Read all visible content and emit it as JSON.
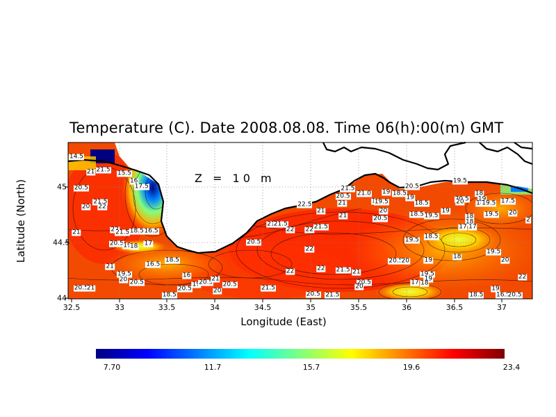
{
  "title": "Temperature (C). Date 2008.08.08. Time 06(h):00(m) GMT",
  "depth_label": "Z = 10 m",
  "axes": {
    "xlabel": "Longitude (East)",
    "ylabel": "Latitude (North)",
    "xticks": [
      "32.5",
      "33",
      "33.5",
      "34",
      "34.5",
      "35",
      "35.5",
      "36",
      "36.5",
      "37"
    ],
    "yticks": [
      "45",
      "44.5",
      "44"
    ]
  },
  "colorbar": {
    "ticks": [
      "7.70",
      "11.7",
      "15.7",
      "19.6",
      "23.4"
    ],
    "colors": [
      "#00007f",
      "#0000ff",
      "#007fff",
      "#00ffff",
      "#7fff7f",
      "#ffff00",
      "#ff7f00",
      "#ff0000",
      "#7f0000"
    ]
  },
  "contour_labels": [
    {
      "t": "14.5",
      "lon": 32.55,
      "lat": 45.27
    },
    {
      "t": "21",
      "lon": 32.7,
      "lat": 45.13
    },
    {
      "t": "21.5",
      "lon": 32.83,
      "lat": 45.15
    },
    {
      "t": "15.5",
      "lon": 33.05,
      "lat": 45.12
    },
    {
      "t": "16",
      "lon": 33.15,
      "lat": 45.05
    },
    {
      "t": "17.5",
      "lon": 33.23,
      "lat": 45.0
    },
    {
      "t": "20.5",
      "lon": 32.6,
      "lat": 44.99
    },
    {
      "t": "20",
      "lon": 32.65,
      "lat": 44.82
    },
    {
      "t": "21.5",
      "lon": 32.8,
      "lat": 44.86
    },
    {
      "t": "22",
      "lon": 32.82,
      "lat": 44.82
    },
    {
      "t": "21",
      "lon": 32.55,
      "lat": 44.59
    },
    {
      "t": "22",
      "lon": 32.95,
      "lat": 44.61
    },
    {
      "t": "21.5",
      "lon": 33.03,
      "lat": 44.59
    },
    {
      "t": "18.5",
      "lon": 33.18,
      "lat": 44.6
    },
    {
      "t": "16.5",
      "lon": 33.33,
      "lat": 44.6
    },
    {
      "t": "20.5",
      "lon": 32.97,
      "lat": 44.49
    },
    {
      "t": "19",
      "lon": 33.08,
      "lat": 44.47
    },
    {
      "t": "18",
      "lon": 33.15,
      "lat": 44.46
    },
    {
      "t": "17",
      "lon": 33.3,
      "lat": 44.49
    },
    {
      "t": "21",
      "lon": 32.9,
      "lat": 44.28
    },
    {
      "t": "16.5",
      "lon": 33.35,
      "lat": 44.3
    },
    {
      "t": "18.5",
      "lon": 33.55,
      "lat": 44.34
    },
    {
      "t": "19.5",
      "lon": 33.05,
      "lat": 44.21
    },
    {
      "t": "20",
      "lon": 33.04,
      "lat": 44.16
    },
    {
      "t": "20.5",
      "lon": 33.18,
      "lat": 44.14
    },
    {
      "t": "20.5",
      "lon": 32.6,
      "lat": 44.09
    },
    {
      "t": "21",
      "lon": 32.7,
      "lat": 44.09
    },
    {
      "t": "16",
      "lon": 33.7,
      "lat": 44.2
    },
    {
      "t": "19",
      "lon": 33.8,
      "lat": 44.12
    },
    {
      "t": "20.5",
      "lon": 33.9,
      "lat": 44.14
    },
    {
      "t": "21",
      "lon": 34.0,
      "lat": 44.17
    },
    {
      "t": "20.5",
      "lon": 34.15,
      "lat": 44.12
    },
    {
      "t": "20",
      "lon": 34.02,
      "lat": 44.06
    },
    {
      "t": "21.5",
      "lon": 34.55,
      "lat": 44.09
    },
    {
      "t": "20.5",
      "lon": 35.02,
      "lat": 44.03
    },
    {
      "t": "21.5",
      "lon": 35.22,
      "lat": 44.01
    },
    {
      "t": "18.5",
      "lon": 33.52,
      "lat": 44.02
    },
    {
      "t": "21",
      "lon": 34.58,
      "lat": 44.66
    },
    {
      "t": "21.5",
      "lon": 34.68,
      "lat": 44.66
    },
    {
      "t": "22",
      "lon": 34.78,
      "lat": 44.61
    },
    {
      "t": "20.5",
      "lon": 34.4,
      "lat": 44.5
    },
    {
      "t": "22",
      "lon": 34.78,
      "lat": 44.24
    },
    {
      "t": "22",
      "lon": 34.98,
      "lat": 44.61
    },
    {
      "t": "21.5",
      "lon": 35.1,
      "lat": 44.64
    },
    {
      "t": "22",
      "lon": 34.98,
      "lat": 44.44
    },
    {
      "t": "22",
      "lon": 35.1,
      "lat": 44.26
    },
    {
      "t": "21.5",
      "lon": 35.33,
      "lat": 44.25
    },
    {
      "t": "21",
      "lon": 35.47,
      "lat": 44.23
    },
    {
      "t": "20.5",
      "lon": 35.55,
      "lat": 44.14
    },
    {
      "t": "20",
      "lon": 35.5,
      "lat": 44.1
    },
    {
      "t": "22.5",
      "lon": 34.93,
      "lat": 44.84
    },
    {
      "t": "21",
      "lon": 35.1,
      "lat": 44.78
    },
    {
      "t": "21",
      "lon": 35.33,
      "lat": 44.74
    },
    {
      "t": "21",
      "lon": 35.32,
      "lat": 44.85
    },
    {
      "t": "20.5",
      "lon": 35.33,
      "lat": 44.91
    },
    {
      "t": "21.5",
      "lon": 35.38,
      "lat": 44.98
    },
    {
      "t": "21.0",
      "lon": 35.55,
      "lat": 44.94
    },
    {
      "t": "1",
      "lon": 35.65,
      "lat": 44.87
    },
    {
      "t": "19.5",
      "lon": 35.73,
      "lat": 44.86
    },
    {
      "t": "19",
      "lon": 35.78,
      "lat": 44.95
    },
    {
      "t": "18.5",
      "lon": 35.92,
      "lat": 44.94
    },
    {
      "t": "20.5",
      "lon": 36.05,
      "lat": 45.0
    },
    {
      "t": "19",
      "lon": 36.03,
      "lat": 44.9
    },
    {
      "t": "18.5",
      "lon": 36.15,
      "lat": 44.85
    },
    {
      "t": "20",
      "lon": 35.75,
      "lat": 44.78
    },
    {
      "t": "20.5",
      "lon": 35.72,
      "lat": 44.71
    },
    {
      "t": "18.5",
      "lon": 36.1,
      "lat": 44.75
    },
    {
      "t": "19.5",
      "lon": 36.25,
      "lat": 44.74
    },
    {
      "t": "19",
      "lon": 36.4,
      "lat": 44.78
    },
    {
      "t": "19.5",
      "lon": 36.55,
      "lat": 45.05
    },
    {
      "t": "20.5",
      "lon": 36.57,
      "lat": 44.89
    },
    {
      "t": "20",
      "lon": 36.55,
      "lat": 44.86
    },
    {
      "t": "18",
      "lon": 36.75,
      "lat": 44.94
    },
    {
      "t": "19",
      "lon": 36.78,
      "lat": 44.89
    },
    {
      "t": "18",
      "lon": 36.76,
      "lat": 44.85
    },
    {
      "t": "19.5",
      "lon": 36.85,
      "lat": 44.85
    },
    {
      "t": "17.5",
      "lon": 37.05,
      "lat": 44.87
    },
    {
      "t": "18",
      "lon": 36.65,
      "lat": 44.73
    },
    {
      "t": "18",
      "lon": 36.65,
      "lat": 44.68
    },
    {
      "t": "19.5",
      "lon": 36.88,
      "lat": 44.75
    },
    {
      "t": "20",
      "lon": 37.1,
      "lat": 44.76
    },
    {
      "t": "2",
      "lon": 37.28,
      "lat": 44.7
    },
    {
      "t": "17",
      "lon": 36.58,
      "lat": 44.64
    },
    {
      "t": "17",
      "lon": 36.68,
      "lat": 44.64
    },
    {
      "t": "18.5",
      "lon": 36.25,
      "lat": 44.55
    },
    {
      "t": "19.5",
      "lon": 36.05,
      "lat": 44.52
    },
    {
      "t": "18",
      "lon": 36.52,
      "lat": 44.37
    },
    {
      "t": "19",
      "lon": 36.22,
      "lat": 44.34
    },
    {
      "t": "19.5",
      "lon": 36.9,
      "lat": 44.41
    },
    {
      "t": "20",
      "lon": 37.02,
      "lat": 44.34
    },
    {
      "t": "20.5",
      "lon": 35.88,
      "lat": 44.33
    },
    {
      "t": "20",
      "lon": 35.98,
      "lat": 44.33
    },
    {
      "t": "19.5",
      "lon": 36.21,
      "lat": 44.21
    },
    {
      "t": "19",
      "lon": 36.22,
      "lat": 44.17
    },
    {
      "t": "17",
      "lon": 36.08,
      "lat": 44.14
    },
    {
      "t": "18",
      "lon": 36.18,
      "lat": 44.13
    },
    {
      "t": "22",
      "lon": 37.2,
      "lat": 44.19
    },
    {
      "t": "19",
      "lon": 36.92,
      "lat": 44.08
    },
    {
      "t": "18.5",
      "lon": 36.72,
      "lat": 44.01
    },
    {
      "t": "16.5",
      "lon": 37.0,
      "lat": 44.01
    },
    {
      "t": "20.5",
      "lon": 37.12,
      "lat": 44.02
    },
    {
      "t": "20.5",
      "lon": 33.68,
      "lat": 44.08
    }
  ]
}
